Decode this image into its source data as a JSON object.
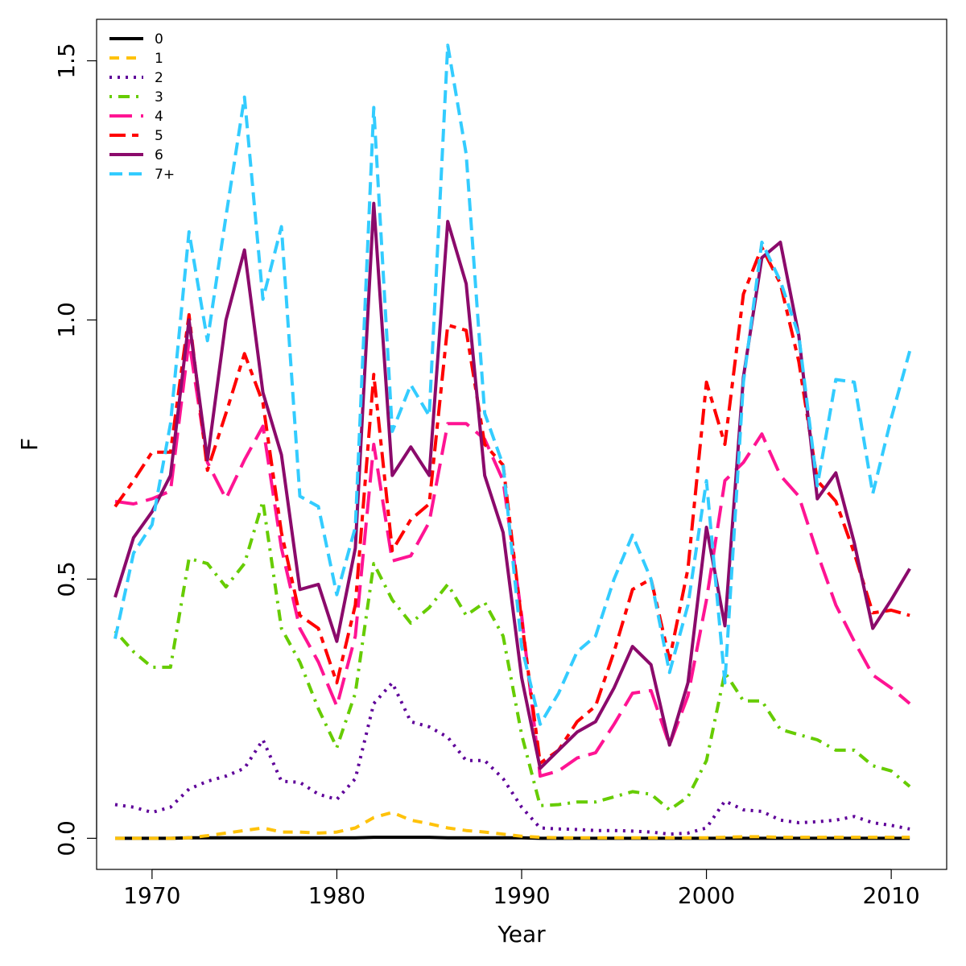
{
  "chart_data": {
    "type": "line",
    "title": "",
    "xlabel": "Year",
    "ylabel": "F",
    "xlim": [
      1967,
      2013
    ],
    "ylim": [
      -0.06,
      1.58
    ],
    "x_ticks": [
      1970,
      1980,
      1990,
      2000,
      2010
    ],
    "y_ticks": [
      0.0,
      0.5,
      1.0,
      1.5
    ],
    "x_tick_labels": [
      "1970",
      "1980",
      "1990",
      "2000",
      "2010"
    ],
    "y_tick_labels": [
      "0.0",
      "0.5",
      "1.0",
      "1.5"
    ],
    "grid": false,
    "legend_position": "top-left",
    "x": [
      1968,
      1969,
      1970,
      1971,
      1972,
      1973,
      1974,
      1975,
      1976,
      1977,
      1978,
      1979,
      1980,
      1981,
      1982,
      1983,
      1984,
      1985,
      1986,
      1987,
      1988,
      1989,
      1990,
      1991,
      1992,
      1993,
      1994,
      1995,
      1996,
      1997,
      1998,
      1999,
      2000,
      2001,
      2002,
      2003,
      2004,
      2005,
      2006,
      2007,
      2008,
      2009,
      2010,
      2011
    ],
    "series": [
      {
        "name": "0",
        "color": "#000000",
        "dash": "solid",
        "values": [
          0,
          0,
          0,
          0,
          0.001,
          0.001,
          0.001,
          0.001,
          0.001,
          0.001,
          0.001,
          0.001,
          0.001,
          0.001,
          0.002,
          0.002,
          0.002,
          0.002,
          0.001,
          0.001,
          0.001,
          0.001,
          0.001,
          0,
          0,
          0,
          0,
          0,
          0,
          0,
          0,
          0,
          0,
          0,
          0,
          0,
          0,
          0,
          0,
          0,
          0,
          0,
          0,
          0
        ]
      },
      {
        "name": "1",
        "color": "#FFC20A",
        "dash": "short-dash",
        "values": [
          0,
          0,
          0,
          0,
          0.001,
          0.005,
          0.01,
          0.015,
          0.02,
          0.012,
          0.012,
          0.01,
          0.012,
          0.02,
          0.04,
          0.05,
          0.035,
          0.028,
          0.02,
          0.015,
          0.012,
          0.008,
          0.004,
          0.002,
          0.001,
          0.001,
          0.001,
          0.001,
          0.001,
          0.001,
          0.001,
          0.001,
          0.001,
          0.002,
          0.003,
          0.003,
          0.002,
          0.002,
          0.002,
          0.002,
          0.002,
          0.002,
          0.002,
          0.002
        ]
      },
      {
        "name": "2",
        "color": "#5E0099",
        "dash": "dotted",
        "values": [
          0.065,
          0.06,
          0.05,
          0.06,
          0.095,
          0.11,
          0.12,
          0.135,
          0.19,
          0.11,
          0.108,
          0.085,
          0.075,
          0.115,
          0.26,
          0.3,
          0.225,
          0.215,
          0.195,
          0.15,
          0.15,
          0.115,
          0.06,
          0.02,
          0.018,
          0.017,
          0.015,
          0.015,
          0.014,
          0.012,
          0.008,
          0.01,
          0.02,
          0.072,
          0.055,
          0.052,
          0.035,
          0.03,
          0.032,
          0.035,
          0.042,
          0.03,
          0.025,
          0.018
        ]
      },
      {
        "name": "3",
        "color": "#66CC00",
        "dash": "dot-dash",
        "values": [
          0.4,
          0.36,
          0.33,
          0.33,
          0.54,
          0.53,
          0.485,
          0.53,
          0.65,
          0.405,
          0.34,
          0.25,
          0.175,
          0.28,
          0.53,
          0.46,
          0.415,
          0.445,
          0.49,
          0.43,
          0.455,
          0.39,
          0.2,
          0.063,
          0.065,
          0.07,
          0.07,
          0.08,
          0.09,
          0.085,
          0.055,
          0.08,
          0.15,
          0.32,
          0.265,
          0.265,
          0.21,
          0.2,
          0.19,
          0.17,
          0.17,
          0.14,
          0.13,
          0.1
        ]
      },
      {
        "name": "4",
        "color": "#FF1493",
        "dash": "long-dash",
        "values": [
          0.65,
          0.645,
          0.655,
          0.67,
          0.96,
          0.725,
          0.655,
          0.73,
          0.795,
          0.56,
          0.405,
          0.34,
          0.255,
          0.39,
          0.76,
          0.535,
          0.545,
          0.61,
          0.8,
          0.8,
          0.77,
          0.69,
          0.43,
          0.12,
          0.13,
          0.155,
          0.165,
          0.22,
          0.28,
          0.285,
          0.18,
          0.275,
          0.46,
          0.69,
          0.725,
          0.78,
          0.7,
          0.66,
          0.55,
          0.45,
          0.38,
          0.315,
          0.29,
          0.26
        ]
      },
      {
        "name": "5",
        "color": "#FF0000",
        "dash": "two-dash",
        "values": [
          0.64,
          0.69,
          0.745,
          0.745,
          1.01,
          0.71,
          0.82,
          0.935,
          0.84,
          0.59,
          0.43,
          0.405,
          0.3,
          0.45,
          0.895,
          0.555,
          0.615,
          0.645,
          0.99,
          0.98,
          0.76,
          0.72,
          0.42,
          0.145,
          0.17,
          0.225,
          0.255,
          0.36,
          0.48,
          0.5,
          0.345,
          0.52,
          0.88,
          0.76,
          1.05,
          1.14,
          1.07,
          0.92,
          0.69,
          0.65,
          0.55,
          0.435,
          0.44,
          0.43
        ]
      },
      {
        "name": "6",
        "color": "#8B0A6B",
        "dash": "solid",
        "values": [
          0.465,
          0.58,
          0.63,
          0.7,
          1.0,
          0.73,
          1.0,
          1.135,
          0.86,
          0.74,
          0.48,
          0.49,
          0.38,
          0.56,
          1.225,
          0.7,
          0.755,
          0.7,
          1.19,
          1.07,
          0.7,
          0.59,
          0.31,
          0.135,
          0.17,
          0.205,
          0.225,
          0.29,
          0.37,
          0.335,
          0.18,
          0.3,
          0.6,
          0.41,
          0.89,
          1.12,
          1.15,
          0.97,
          0.655,
          0.705,
          0.57,
          0.405,
          0.46,
          0.52
        ]
      },
      {
        "name": "7+",
        "color": "#33CCFF",
        "dash": "dashed",
        "values": [
          0.385,
          0.55,
          0.605,
          0.8,
          1.17,
          0.96,
          1.2,
          1.43,
          1.04,
          1.18,
          0.66,
          0.64,
          0.47,
          0.6,
          1.41,
          0.785,
          0.875,
          0.815,
          1.53,
          1.32,
          0.82,
          0.72,
          0.37,
          0.22,
          0.28,
          0.36,
          0.39,
          0.5,
          0.585,
          0.5,
          0.32,
          0.45,
          0.69,
          0.3,
          0.88,
          1.15,
          1.075,
          0.97,
          0.68,
          0.885,
          0.88,
          0.665,
          0.81,
          0.94
        ]
      }
    ]
  }
}
